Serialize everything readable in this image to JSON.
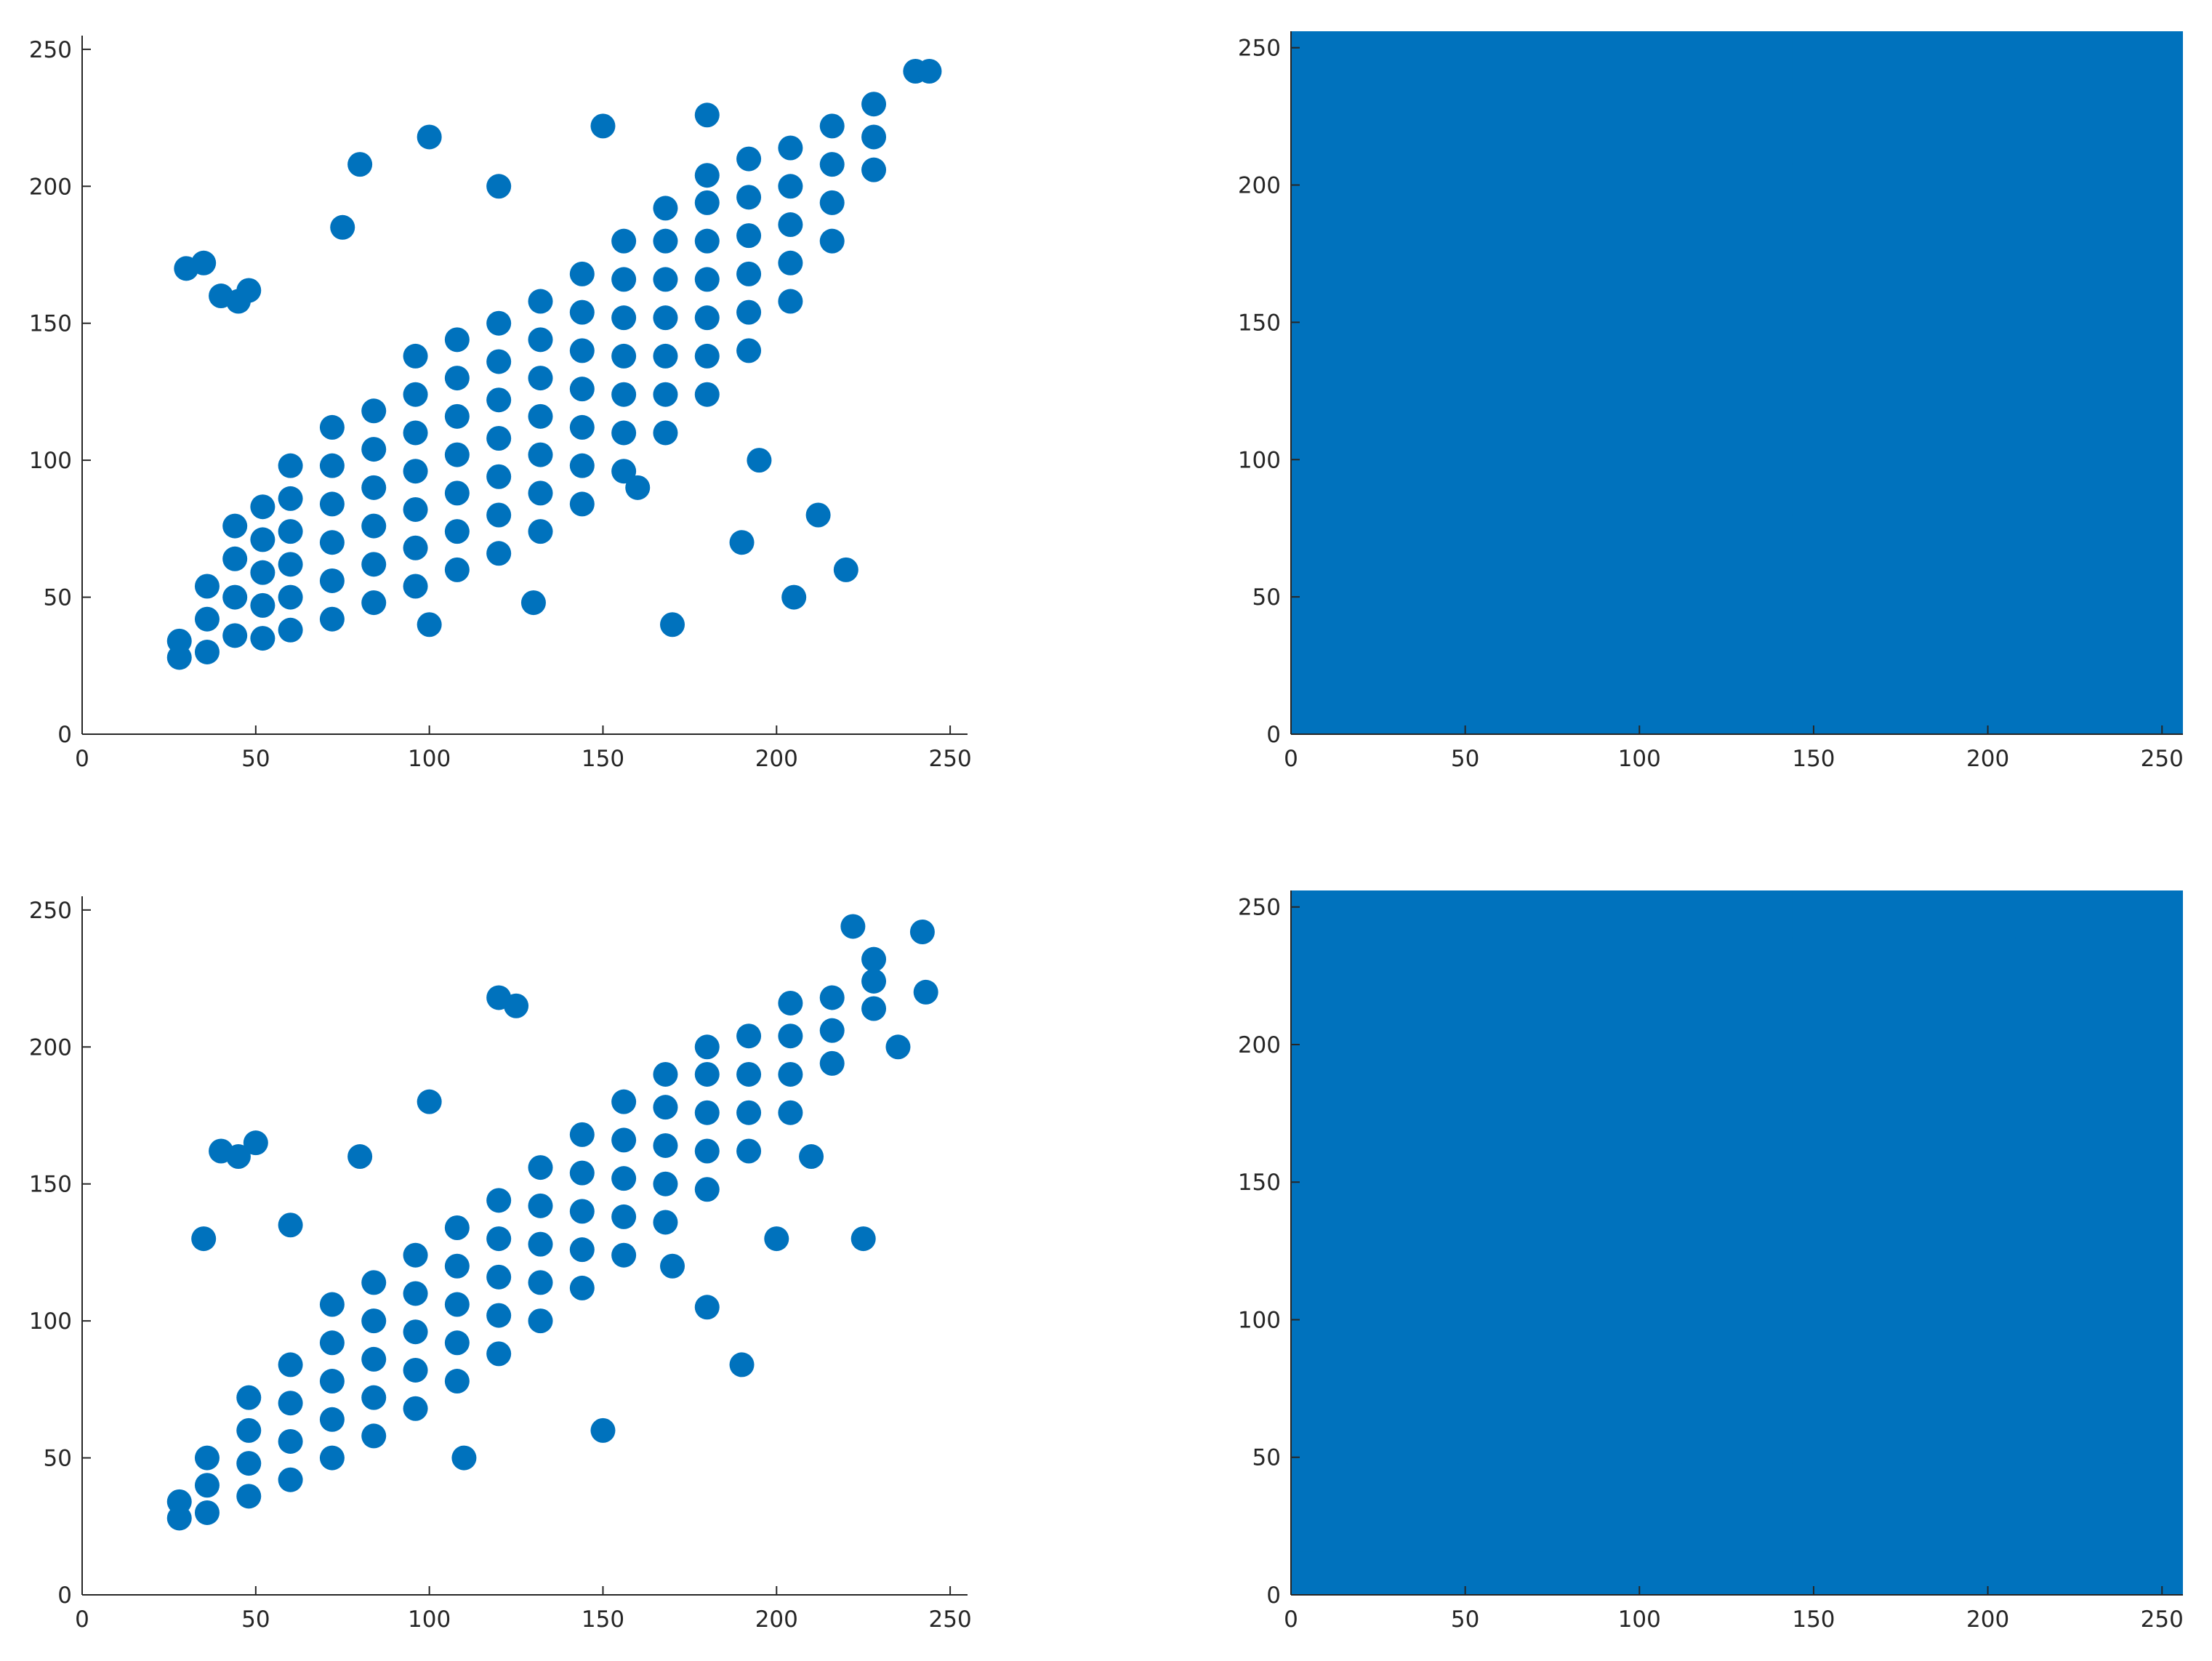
{
  "chart_data": [
    {
      "type": "scatter",
      "color": "#0072bd",
      "xlim": [
        0,
        255
      ],
      "ylim": [
        0,
        255
      ],
      "xticks": [
        0,
        50,
        100,
        150,
        200,
        250
      ],
      "yticks": [
        0,
        50,
        100,
        150,
        200,
        250
      ],
      "x": [
        28,
        28,
        36,
        36,
        36,
        44,
        44,
        44,
        44,
        52,
        52,
        52,
        52,
        52,
        60,
        60,
        60,
        60,
        60,
        60,
        72,
        72,
        72,
        72,
        72,
        72,
        84,
        84,
        84,
        84,
        84,
        84,
        96,
        96,
        96,
        96,
        96,
        96,
        96,
        108,
        108,
        108,
        108,
        108,
        108,
        108,
        120,
        120,
        120,
        120,
        120,
        120,
        120,
        132,
        132,
        132,
        132,
        132,
        132,
        132,
        144,
        144,
        144,
        144,
        144,
        144,
        144,
        156,
        156,
        156,
        156,
        156,
        156,
        156,
        168,
        168,
        168,
        168,
        168,
        168,
        168,
        180,
        180,
        180,
        180,
        180,
        180,
        180,
        192,
        192,
        192,
        192,
        192,
        192,
        204,
        204,
        204,
        204,
        204,
        216,
        216,
        216,
        216,
        228,
        228,
        228,
        30,
        35,
        40,
        45,
        48,
        80,
        100,
        150,
        180,
        240,
        244,
        220,
        205,
        212,
        195,
        160,
        170,
        130,
        190,
        100,
        75,
        120
      ],
      "values": [
        28,
        34,
        30,
        42,
        54,
        36,
        50,
        64,
        76,
        35,
        47,
        59,
        71,
        83,
        38,
        50,
        62,
        74,
        86,
        98,
        42,
        56,
        70,
        84,
        98,
        112,
        48,
        62,
        76,
        90,
        104,
        118,
        54,
        68,
        82,
        96,
        110,
        124,
        138,
        60,
        74,
        88,
        102,
        116,
        130,
        144,
        66,
        80,
        94,
        108,
        122,
        136,
        150,
        74,
        88,
        102,
        116,
        130,
        144,
        158,
        84,
        98,
        112,
        126,
        140,
        154,
        168,
        96,
        110,
        124,
        138,
        152,
        166,
        180,
        110,
        124,
        138,
        152,
        166,
        180,
        192,
        124,
        138,
        152,
        166,
        180,
        194,
        204,
        140,
        154,
        168,
        182,
        196,
        210,
        158,
        172,
        186,
        200,
        214,
        180,
        194,
        208,
        222,
        206,
        218,
        230,
        170,
        172,
        160,
        158,
        162,
        208,
        218,
        222,
        226,
        242,
        242,
        60,
        50,
        80,
        100,
        90,
        40,
        48,
        70,
        40,
        185,
        200
      ]
    },
    {
      "type": "scatter",
      "color": "#0072bd",
      "xlim": [
        0,
        256
      ],
      "ylim": [
        0,
        256
      ],
      "xticks": [
        0,
        50,
        100,
        150,
        200,
        250
      ],
      "yticks": [
        0,
        50,
        100,
        150,
        200,
        250
      ],
      "x": [
        0,
        32,
        64,
        96,
        128,
        160,
        192,
        224,
        255,
        0,
        32,
        64,
        96,
        128,
        160,
        192,
        224,
        255,
        0,
        32,
        64,
        96,
        128,
        160,
        192,
        224,
        255,
        0,
        32,
        64,
        96,
        128,
        160,
        192,
        224,
        255,
        0,
        32,
        64,
        96,
        128,
        160,
        192,
        224,
        255,
        0,
        32,
        64,
        96,
        128,
        160,
        192,
        224,
        255,
        0,
        32,
        64,
        96,
        128,
        160,
        192,
        224,
        255,
        0,
        32,
        64,
        96,
        128,
        160,
        192,
        224,
        255,
        0,
        32,
        64,
        96,
        128,
        160,
        192,
        224,
        255
      ],
      "values": [
        0,
        0,
        0,
        0,
        0,
        0,
        0,
        0,
        0,
        32,
        32,
        32,
        32,
        32,
        32,
        32,
        32,
        32,
        64,
        64,
        64,
        64,
        64,
        64,
        64,
        64,
        64,
        96,
        96,
        96,
        96,
        96,
        96,
        96,
        96,
        96,
        128,
        128,
        128,
        128,
        128,
        128,
        128,
        128,
        128,
        160,
        160,
        160,
        160,
        160,
        160,
        160,
        160,
        160,
        192,
        192,
        192,
        192,
        192,
        192,
        192,
        192,
        192,
        224,
        224,
        224,
        224,
        224,
        224,
        224,
        224,
        224,
        255,
        255,
        255,
        255,
        255,
        255,
        255,
        255,
        255
      ]
    },
    {
      "type": "scatter",
      "color": "#0072bd",
      "xlim": [
        0,
        255
      ],
      "ylim": [
        0,
        255
      ],
      "xticks": [
        0,
        50,
        100,
        150,
        200,
        250
      ],
      "yticks": [
        0,
        50,
        100,
        150,
        200,
        250
      ],
      "x": [
        28,
        28,
        36,
        36,
        36,
        48,
        48,
        48,
        48,
        60,
        60,
        60,
        60,
        72,
        72,
        72,
        72,
        72,
        84,
        84,
        84,
        84,
        84,
        96,
        96,
        96,
        96,
        96,
        108,
        108,
        108,
        108,
        108,
        120,
        120,
        120,
        120,
        120,
        132,
        132,
        132,
        132,
        132,
        144,
        144,
        144,
        144,
        144,
        156,
        156,
        156,
        156,
        156,
        168,
        168,
        168,
        168,
        168,
        180,
        180,
        180,
        180,
        180,
        192,
        192,
        192,
        192,
        204,
        204,
        204,
        204,
        216,
        216,
        216,
        228,
        228,
        228,
        40,
        45,
        50,
        120,
        125,
        35,
        60,
        170,
        180,
        190,
        200,
        210,
        225,
        235,
        243,
        242,
        222,
        150,
        110,
        100,
        80
      ],
      "values": [
        28,
        34,
        30,
        40,
        50,
        36,
        48,
        60,
        72,
        42,
        56,
        70,
        84,
        50,
        64,
        78,
        92,
        106,
        58,
        72,
        86,
        100,
        114,
        68,
        82,
        96,
        110,
        124,
        78,
        92,
        106,
        120,
        134,
        88,
        102,
        116,
        130,
        144,
        100,
        114,
        128,
        142,
        156,
        112,
        126,
        140,
        154,
        168,
        124,
        138,
        152,
        166,
        180,
        136,
        150,
        164,
        178,
        190,
        148,
        162,
        176,
        190,
        200,
        162,
        176,
        190,
        204,
        176,
        190,
        204,
        216,
        194,
        206,
        218,
        214,
        224,
        232,
        162,
        160,
        165,
        218,
        215,
        130,
        135,
        120,
        105,
        84,
        130,
        160,
        130,
        200,
        220,
        242,
        244,
        60,
        50,
        180,
        160
      ]
    },
    {
      "type": "scatter",
      "color": "#0072bd",
      "xlim": [
        0,
        256
      ],
      "ylim": [
        0,
        256
      ],
      "xticks": [
        0,
        50,
        100,
        150,
        200,
        250
      ],
      "yticks": [
        0,
        50,
        100,
        150,
        200,
        250
      ],
      "x": [
        0,
        32,
        64,
        96,
        128,
        160,
        192,
        224,
        255,
        0,
        32,
        64,
        96,
        128,
        160,
        192,
        224,
        255,
        0,
        32,
        64,
        96,
        128,
        160,
        192,
        224,
        255,
        0,
        32,
        64,
        96,
        128,
        160,
        192,
        224,
        255,
        0,
        32,
        64,
        96,
        128,
        160,
        192,
        224,
        255,
        0,
        32,
        64,
        96,
        128,
        160,
        192,
        224,
        255,
        0,
        32,
        64,
        96,
        128,
        160,
        192,
        224,
        255,
        0,
        32,
        64,
        96,
        128,
        160,
        192,
        224,
        255,
        0,
        32,
        64,
        96,
        128,
        160,
        192,
        224,
        255
      ],
      "values": [
        0,
        0,
        0,
        0,
        0,
        0,
        0,
        0,
        0,
        32,
        32,
        32,
        32,
        32,
        32,
        32,
        32,
        32,
        64,
        64,
        64,
        64,
        64,
        64,
        64,
        64,
        64,
        96,
        96,
        96,
        96,
        96,
        96,
        96,
        96,
        96,
        128,
        128,
        128,
        128,
        128,
        128,
        128,
        128,
        128,
        160,
        160,
        160,
        160,
        160,
        160,
        160,
        160,
        160,
        192,
        192,
        192,
        192,
        192,
        192,
        192,
        192,
        192,
        224,
        224,
        224,
        224,
        224,
        224,
        224,
        224,
        224,
        255,
        255,
        255,
        255,
        255,
        255,
        255,
        255,
        255
      ]
    }
  ]
}
